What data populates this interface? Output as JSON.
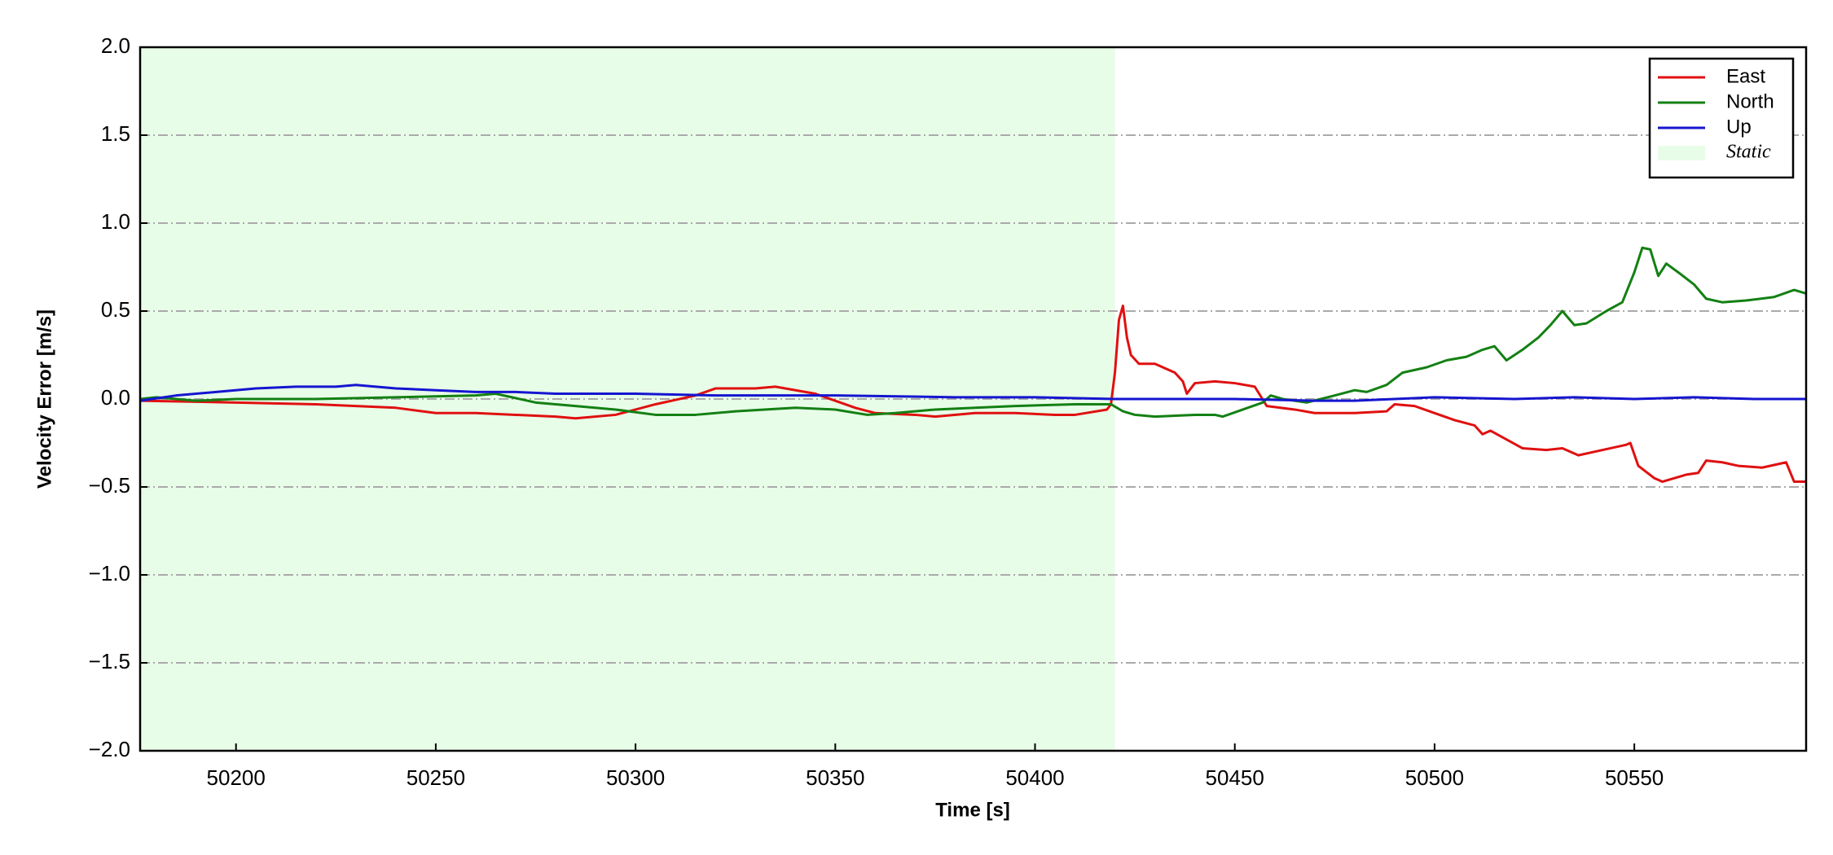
{
  "chart_data": {
    "type": "line",
    "xlabel": "Time [s]",
    "ylabel": "Velocity Error [m/s]",
    "xlim": [
      50176,
      50593
    ],
    "ylim": [
      -2,
      2
    ],
    "xticks": [
      50200,
      50250,
      50300,
      50350,
      50400,
      50450,
      50500,
      50550
    ],
    "yticks": [
      {
        "value": -2,
        "label": "−2.0"
      },
      {
        "value": -1.5,
        "label": "−1.5"
      },
      {
        "value": -1,
        "label": "−1.0"
      },
      {
        "value": -0.5,
        "label": "−0.5"
      },
      {
        "value": 0,
        "label": "0.0"
      },
      {
        "value": 0.5,
        "label": "0.5"
      },
      {
        "value": 1,
        "label": "1.0"
      },
      {
        "value": 1.5,
        "label": "1.5"
      },
      {
        "value": 2,
        "label": "2.0"
      }
    ],
    "grid": true,
    "legend": "upper right",
    "shaded_regions": [
      {
        "name": "Static",
        "color": "#e8fde8",
        "x": [
          50176,
          50420
        ]
      }
    ],
    "series": [
      {
        "name": "East",
        "color": "#e01010",
        "x": [
          50176,
          50200,
          50220,
          50240,
          50250,
          50260,
          50270,
          50280,
          50285,
          50295,
          50305,
          50315,
          50320,
          50330,
          50335,
          50345,
          50355,
          50360,
          50370,
          50375,
          50385,
          50395,
          50405,
          50410,
          50418,
          50419,
          50420,
          50421,
          50422,
          50423,
          50424,
          50426,
          50430,
          50435,
          50437,
          50438,
          50440,
          50445,
          50450,
          50455,
          50458,
          50465,
          50470,
          50480,
          50488,
          50490,
          50495,
          50500,
          50505,
          50510,
          50512,
          50514,
          50518,
          50522,
          50528,
          50532,
          50536,
          50540,
          50548,
          50549,
          50551,
          50555,
          50557,
          50563,
          50566,
          50568,
          50572,
          50576,
          50582,
          50588,
          50590,
          50593
        ],
        "values": [
          -0.01,
          -0.02,
          -0.03,
          -0.05,
          -0.08,
          -0.08,
          -0.09,
          -0.1,
          -0.11,
          -0.09,
          -0.03,
          0.02,
          0.06,
          0.06,
          0.07,
          0.03,
          -0.05,
          -0.08,
          -0.09,
          -0.1,
          -0.08,
          -0.08,
          -0.09,
          -0.09,
          -0.06,
          -0.03,
          0.15,
          0.45,
          0.53,
          0.35,
          0.25,
          0.2,
          0.2,
          0.15,
          0.1,
          0.03,
          0.09,
          0.1,
          0.09,
          0.07,
          -0.04,
          -0.06,
          -0.08,
          -0.08,
          -0.07,
          -0.03,
          -0.04,
          -0.08,
          -0.12,
          -0.15,
          -0.2,
          -0.18,
          -0.23,
          -0.28,
          -0.29,
          -0.28,
          -0.32,
          -0.3,
          -0.26,
          -0.25,
          -0.38,
          -0.45,
          -0.47,
          -0.43,
          -0.42,
          -0.35,
          -0.36,
          -0.38,
          -0.39,
          -0.36,
          -0.47,
          -0.47
        ]
      },
      {
        "name": "North",
        "color": "#138013",
        "x": [
          50176,
          50180,
          50190,
          50200,
          50210,
          50220,
          50240,
          50260,
          50265,
          50275,
          50285,
          50295,
          50305,
          50315,
          50325,
          50340,
          50350,
          50358,
          50365,
          50375,
          50385,
          50395,
          50410,
          50419,
          50422,
          50425,
          50430,
          50440,
          50445,
          50447,
          50452,
          50457,
          50459,
          50462,
          50468,
          50475,
          50480,
          50483,
          50488,
          50492,
          50498,
          50503,
          50508,
          50512,
          50515,
          50518,
          50522,
          50526,
          50529,
          50532,
          50535,
          50538,
          50543,
          50547,
          50550,
          50552,
          50554,
          50556,
          50558,
          50561,
          50565,
          50568,
          50572,
          50578,
          50585,
          50590,
          50593
        ],
        "values": [
          0.0,
          0.01,
          -0.01,
          0.0,
          0.0,
          0.0,
          0.01,
          0.02,
          0.03,
          -0.02,
          -0.04,
          -0.06,
          -0.09,
          -0.09,
          -0.07,
          -0.05,
          -0.06,
          -0.09,
          -0.08,
          -0.06,
          -0.05,
          -0.04,
          -0.03,
          -0.03,
          -0.07,
          -0.09,
          -0.1,
          -0.09,
          -0.09,
          -0.1,
          -0.06,
          -0.02,
          0.02,
          0.0,
          -0.02,
          0.02,
          0.05,
          0.04,
          0.08,
          0.15,
          0.18,
          0.22,
          0.24,
          0.28,
          0.3,
          0.22,
          0.28,
          0.35,
          0.42,
          0.5,
          0.42,
          0.43,
          0.5,
          0.55,
          0.72,
          0.86,
          0.85,
          0.7,
          0.77,
          0.72,
          0.65,
          0.57,
          0.55,
          0.56,
          0.58,
          0.62,
          0.6
        ]
      },
      {
        "name": "Up",
        "color": "#1515d0",
        "x": [
          50176,
          50185,
          50195,
          50205,
          50215,
          50225,
          50230,
          50240,
          50250,
          50260,
          50270,
          50280,
          50300,
          50320,
          50350,
          50380,
          50400,
          50420,
          50450,
          50470,
          50480,
          50490,
          50500,
          50520,
          50535,
          50550,
          50565,
          50580,
          50593
        ],
        "values": [
          -0.01,
          0.02,
          0.04,
          0.06,
          0.07,
          0.07,
          0.08,
          0.06,
          0.05,
          0.04,
          0.04,
          0.03,
          0.03,
          0.02,
          0.02,
          0.01,
          0.01,
          0.0,
          0.0,
          -0.01,
          -0.01,
          0.0,
          0.01,
          0.0,
          0.01,
          0.0,
          0.01,
          0.0,
          0.0
        ]
      }
    ]
  }
}
